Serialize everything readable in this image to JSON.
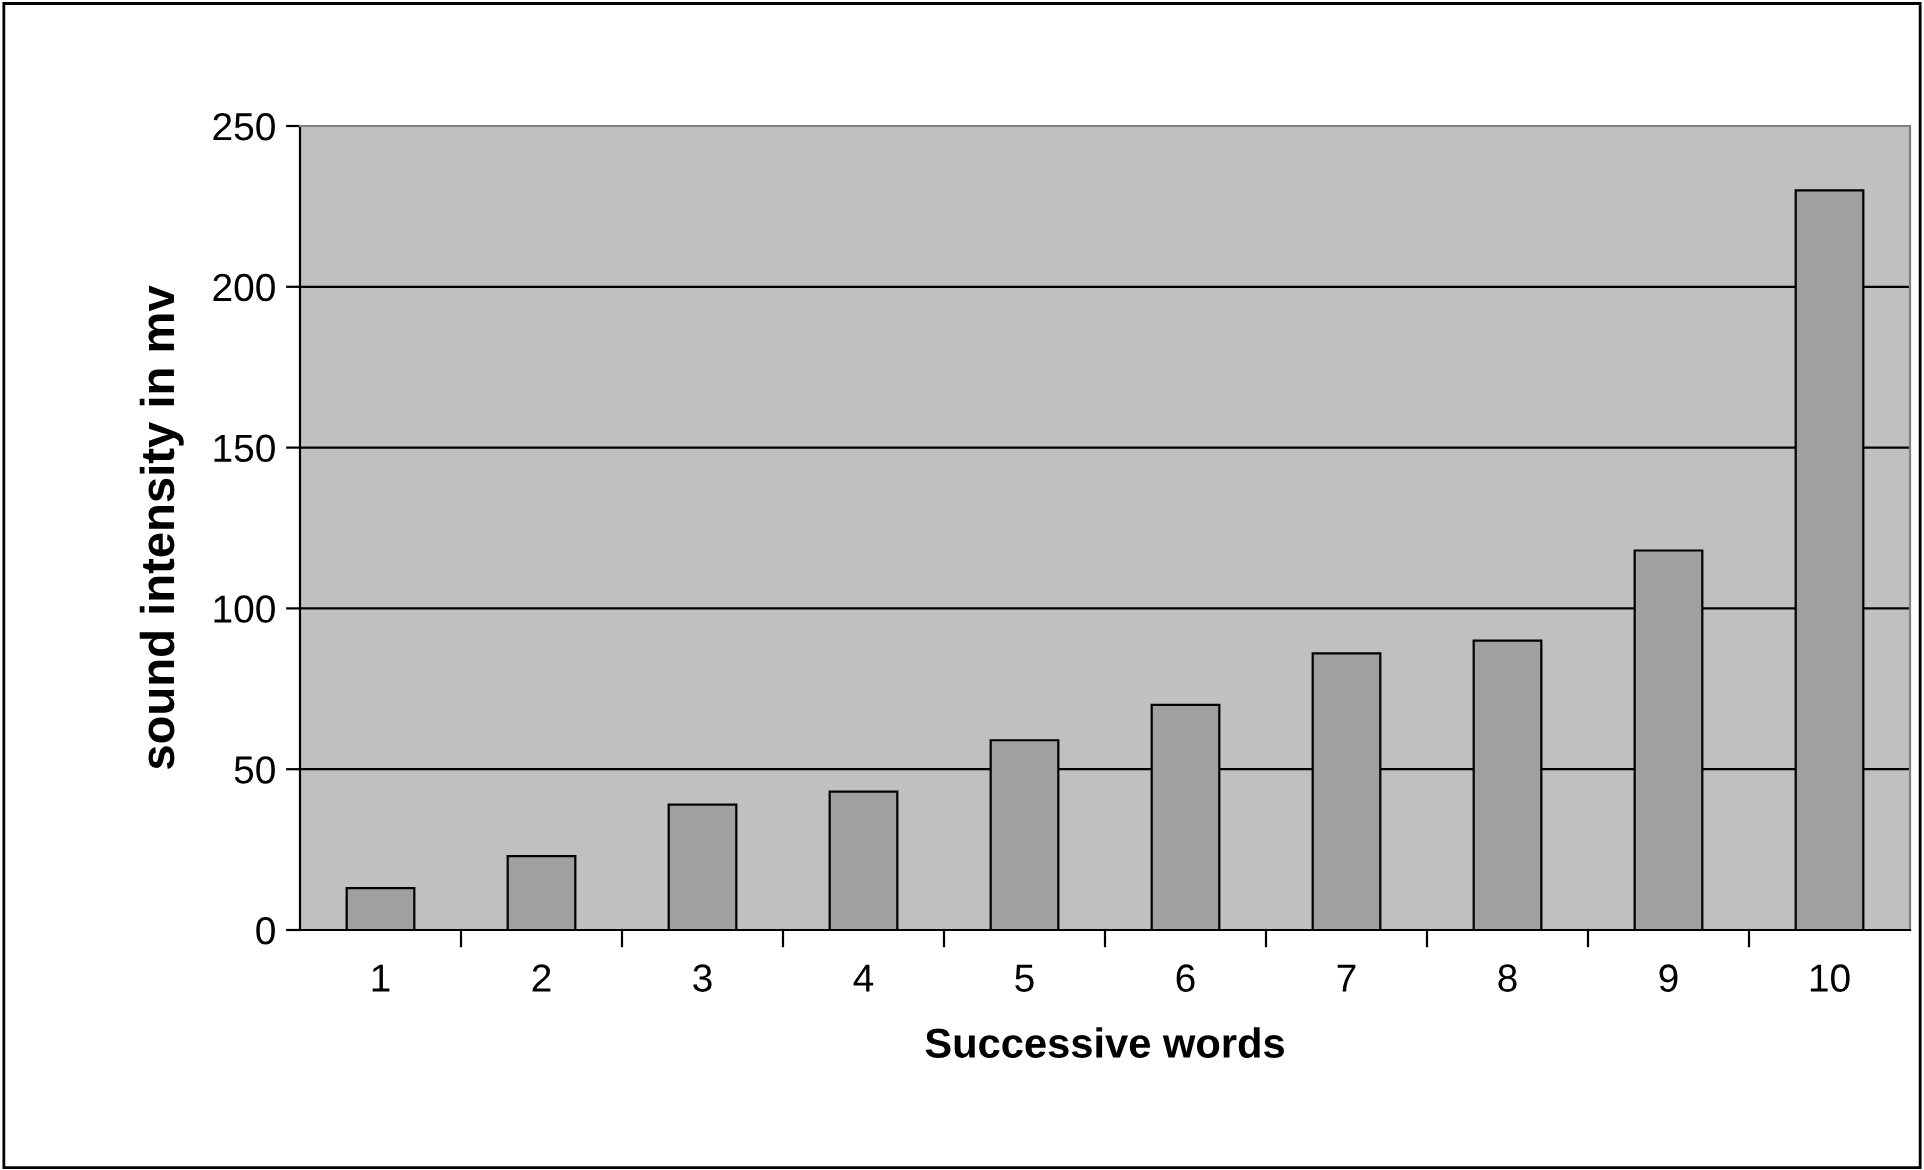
{
  "chart_data": {
    "type": "bar",
    "xlabel": "Successive words",
    "ylabel": "sound intensity in mv",
    "categories": [
      "1",
      "2",
      "3",
      "4",
      "5",
      "6",
      "7",
      "8",
      "9",
      "10"
    ],
    "values": [
      13,
      23,
      39,
      43,
      59,
      70,
      86,
      90,
      118,
      230
    ],
    "color": "#a0a0a0",
    "ylim": [
      0,
      250
    ],
    "yticks": [
      0,
      50,
      100,
      150,
      200,
      250
    ],
    "grid": "y",
    "legend": false
  }
}
